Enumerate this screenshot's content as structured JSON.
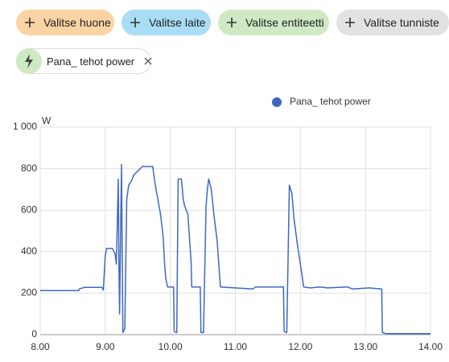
{
  "chips": [
    "Valitse huone",
    "Valitse laite",
    "Valitse entiteetti",
    "Valitse tunniste"
  ],
  "entity_chip": "Pana_ tehot power",
  "chart_data": {
    "type": "line",
    "y_label": "W",
    "x": [
      8.0,
      8.59,
      8.6,
      8.68,
      8.95,
      8.97,
      9.0,
      9.02,
      9.11,
      9.15,
      9.17,
      9.2,
      9.21,
      9.22,
      9.25,
      9.27,
      9.3,
      9.33,
      9.36,
      9.4,
      9.44,
      9.57,
      9.73,
      9.75,
      9.78,
      9.81,
      9.85,
      9.89,
      9.91,
      9.93,
      9.96,
      10.05,
      10.06,
      10.1,
      10.12,
      10.17,
      10.2,
      10.22,
      10.27,
      10.3,
      10.32,
      10.33,
      10.46,
      10.47,
      10.51,
      10.55,
      10.57,
      10.59,
      10.63,
      10.67,
      10.72,
      10.77,
      11.27,
      11.31,
      11.74,
      11.75,
      11.79,
      11.83,
      11.87,
      11.9,
      11.96,
      12.0,
      12.05,
      12.15,
      12.3,
      12.42,
      12.72,
      12.8,
      13.06,
      13.25,
      13.26,
      13.31,
      14.0
    ],
    "series": [
      {
        "name": "Pana_ tehot power",
        "color": "#3f68c2",
        "values": [
          212,
          212,
          220,
          228,
          228,
          215,
          380,
          415,
          415,
          390,
          340,
          750,
          340,
          100,
          820,
          10,
          30,
          650,
          720,
          740,
          770,
          810,
          810,
          760,
          700,
          650,
          580,
          470,
          350,
          270,
          230,
          230,
          15,
          10,
          750,
          750,
          650,
          620,
          580,
          440,
          350,
          230,
          230,
          10,
          10,
          620,
          700,
          750,
          700,
          580,
          450,
          230,
          220,
          230,
          230,
          15,
          10,
          720,
          680,
          560,
          420,
          340,
          230,
          225,
          230,
          225,
          230,
          220,
          225,
          220,
          10,
          5,
          5
        ]
      }
    ],
    "xlim": [
      8,
      14
    ],
    "xticks": [
      {
        "value": 8,
        "label": "8.00"
      },
      {
        "value": 9,
        "label": "9.00"
      },
      {
        "value": 10,
        "label": "10.00"
      },
      {
        "value": 11,
        "label": "11.00"
      },
      {
        "value": 12,
        "label": "12.00"
      },
      {
        "value": 13,
        "label": "13.00"
      },
      {
        "value": 14,
        "label": "14.00"
      }
    ],
    "ylim": [
      0,
      1000
    ],
    "yticks": [
      0,
      200,
      400,
      600,
      800,
      {
        "value": 1000,
        "label": "1 000"
      }
    ],
    "grid": true
  }
}
